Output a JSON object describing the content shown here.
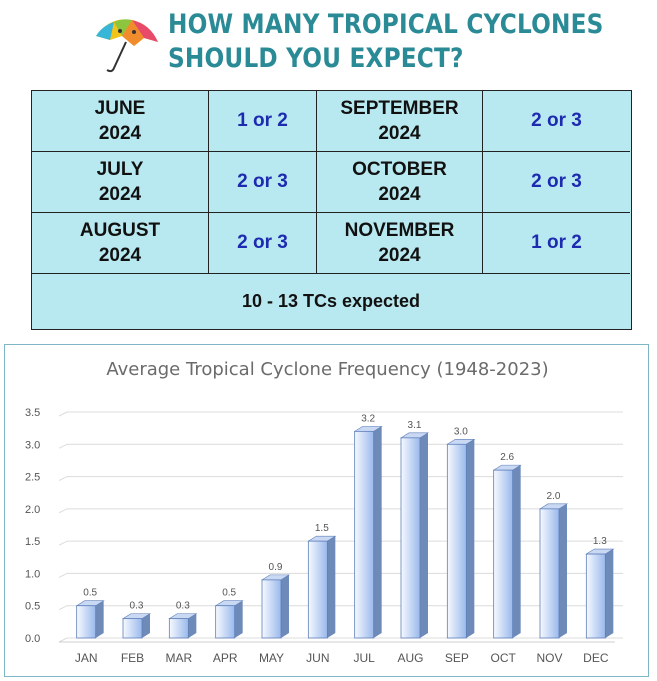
{
  "header": {
    "title_line1": "HOW MANY TROPICAL CYCLONES",
    "title_line2": "SHOULD YOU EXPECT?"
  },
  "table": {
    "rows": [
      [
        {
          "month": "JUNE",
          "year": "2024",
          "count": "1 or 2"
        },
        {
          "month": "SEPTEMBER",
          "year": "2024",
          "count": "2 or 3"
        }
      ],
      [
        {
          "month": "JULY",
          "year": "2024",
          "count": "2 or 3"
        },
        {
          "month": "OCTOBER",
          "year": "2024",
          "count": "2 or 3"
        }
      ],
      [
        {
          "month": "AUGUST",
          "year": "2024",
          "count": "2 or 3"
        },
        {
          "month": "NOVEMBER",
          "year": "2024",
          "count": "1 or 2"
        }
      ]
    ],
    "total": "10 - 13 TCs expected"
  },
  "chart_data": {
    "type": "bar",
    "title": "Average Tropical Cyclone Frequency (1948-2023)",
    "categories": [
      "JAN",
      "FEB",
      "MAR",
      "APR",
      "MAY",
      "JUN",
      "JUL",
      "AUG",
      "SEP",
      "OCT",
      "NOV",
      "DEC"
    ],
    "values": [
      0.5,
      0.3,
      0.3,
      0.5,
      0.9,
      1.5,
      3.2,
      3.1,
      3.0,
      2.6,
      2.0,
      1.3
    ],
    "data_labels": [
      "0.5",
      "0.3",
      "0.3",
      "0.5",
      "0.9",
      "1.5",
      "3.2",
      "3.1",
      "3.0",
      "2.6",
      "2.0",
      "1.3"
    ],
    "yticks": [
      "0.0",
      "0.5",
      "1.0",
      "1.5",
      "2.0",
      "2.5",
      "3.0",
      "3.5"
    ],
    "ylim": [
      0,
      3.5
    ],
    "grid": true,
    "legend": "none",
    "colors": {
      "bar_light": "#f4f8ff",
      "bar_dark": "#8fb2ea",
      "bar_edge": "#5f7fb8",
      "side": "#6d8ab8",
      "top": "#c9d9f4"
    }
  }
}
